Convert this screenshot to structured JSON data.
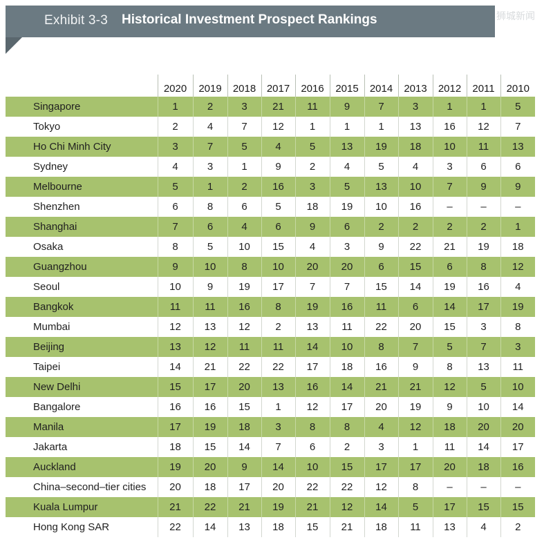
{
  "header": {
    "label": "Exhibit 3-3",
    "title": "Historical Investment Prospect Rankings",
    "watermark": "狮城新闻"
  },
  "chart_data": {
    "type": "table",
    "title": "Historical Investment Prospect Rankings",
    "columns": [
      "2020",
      "2019",
      "2018",
      "2017",
      "2016",
      "2015",
      "2014",
      "2013",
      "2012",
      "2011",
      "2010"
    ],
    "rows": [
      {
        "city": "Singapore",
        "values": [
          "1",
          "2",
          "3",
          "21",
          "11",
          "9",
          "7",
          "3",
          "1",
          "1",
          "5"
        ]
      },
      {
        "city": "Tokyo",
        "values": [
          "2",
          "4",
          "7",
          "12",
          "1",
          "1",
          "1",
          "13",
          "16",
          "12",
          "7"
        ]
      },
      {
        "city": "Ho Chi Minh City",
        "values": [
          "3",
          "7",
          "5",
          "4",
          "5",
          "13",
          "19",
          "18",
          "10",
          "11",
          "13"
        ]
      },
      {
        "city": "Sydney",
        "values": [
          "4",
          "3",
          "1",
          "9",
          "2",
          "4",
          "5",
          "4",
          "3",
          "6",
          "6"
        ]
      },
      {
        "city": "Melbourne",
        "values": [
          "5",
          "1",
          "2",
          "16",
          "3",
          "5",
          "13",
          "10",
          "7",
          "9",
          "9"
        ]
      },
      {
        "city": "Shenzhen",
        "values": [
          "6",
          "8",
          "6",
          "5",
          "18",
          "19",
          "10",
          "16",
          "–",
          "–",
          "–"
        ]
      },
      {
        "city": "Shanghai",
        "values": [
          "7",
          "6",
          "4",
          "6",
          "9",
          "6",
          "2",
          "2",
          "2",
          "2",
          "1"
        ]
      },
      {
        "city": "Osaka",
        "values": [
          "8",
          "5",
          "10",
          "15",
          "4",
          "3",
          "9",
          "22",
          "21",
          "19",
          "18"
        ]
      },
      {
        "city": "Guangzhou",
        "values": [
          "9",
          "10",
          "8",
          "10",
          "20",
          "20",
          "6",
          "15",
          "6",
          "8",
          "12"
        ]
      },
      {
        "city": "Seoul",
        "values": [
          "10",
          "9",
          "19",
          "17",
          "7",
          "7",
          "15",
          "14",
          "19",
          "16",
          "4"
        ]
      },
      {
        "city": "Bangkok",
        "values": [
          "11",
          "11",
          "16",
          "8",
          "19",
          "16",
          "11",
          "6",
          "14",
          "17",
          "19"
        ]
      },
      {
        "city": "Mumbai",
        "values": [
          "12",
          "13",
          "12",
          "2",
          "13",
          "11",
          "22",
          "20",
          "15",
          "3",
          "8"
        ]
      },
      {
        "city": "Beijing",
        "values": [
          "13",
          "12",
          "11",
          "11",
          "14",
          "10",
          "8",
          "7",
          "5",
          "7",
          "3"
        ]
      },
      {
        "city": "Taipei",
        "values": [
          "14",
          "21",
          "22",
          "22",
          "17",
          "18",
          "16",
          "9",
          "8",
          "13",
          "11"
        ]
      },
      {
        "city": "New Delhi",
        "values": [
          "15",
          "17",
          "20",
          "13",
          "16",
          "14",
          "21",
          "21",
          "12",
          "5",
          "10"
        ]
      },
      {
        "city": "Bangalore",
        "values": [
          "16",
          "16",
          "15",
          "1",
          "12",
          "17",
          "20",
          "19",
          "9",
          "10",
          "14"
        ]
      },
      {
        "city": "Manila",
        "values": [
          "17",
          "19",
          "18",
          "3",
          "8",
          "8",
          "4",
          "12",
          "18",
          "20",
          "20"
        ]
      },
      {
        "city": "Jakarta",
        "values": [
          "18",
          "15",
          "14",
          "7",
          "6",
          "2",
          "3",
          "1",
          "11",
          "14",
          "17"
        ]
      },
      {
        "city": "Auckland",
        "values": [
          "19",
          "20",
          "9",
          "14",
          "10",
          "15",
          "17",
          "17",
          "20",
          "18",
          "16"
        ]
      },
      {
        "city": "China–second–tier cities",
        "values": [
          "20",
          "18",
          "17",
          "20",
          "22",
          "22",
          "12",
          "8",
          "–",
          "–",
          "–"
        ]
      },
      {
        "city": "Kuala Lumpur",
        "values": [
          "21",
          "22",
          "21",
          "19",
          "21",
          "12",
          "14",
          "5",
          "17",
          "15",
          "15"
        ]
      },
      {
        "city": "Hong Kong SAR",
        "values": [
          "22",
          "14",
          "13",
          "18",
          "15",
          "21",
          "18",
          "11",
          "13",
          "4",
          "2"
        ]
      }
    ],
    "colors": {
      "banner": "#6b7a82",
      "row_highlight": "#a7c26e"
    }
  }
}
